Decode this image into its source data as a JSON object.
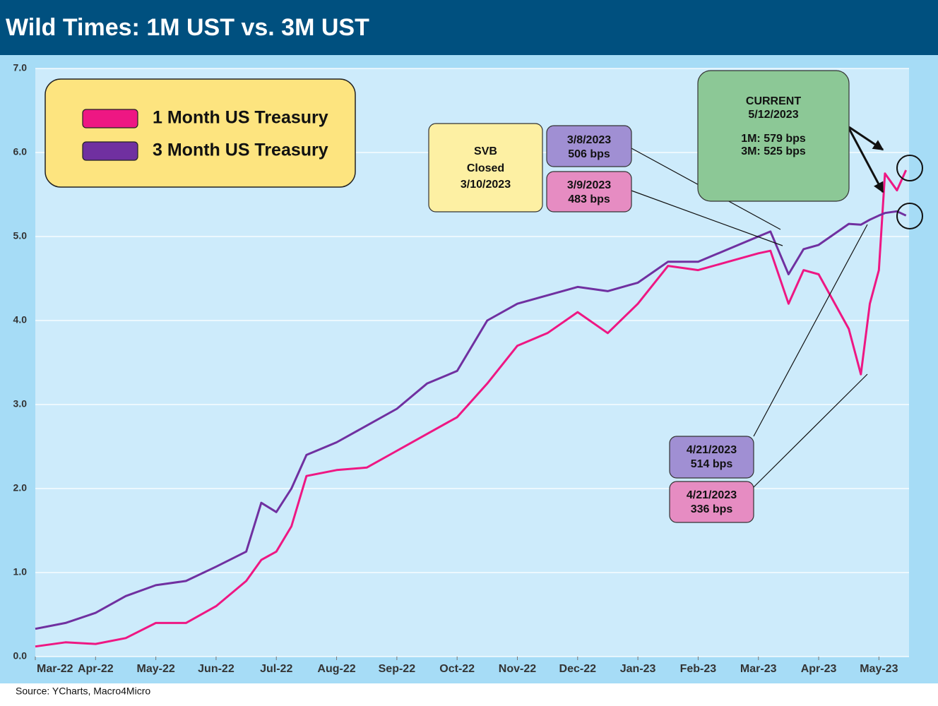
{
  "chart_data": {
    "type": "line",
    "title": "Wild Times: 1M UST vs. 3M UST",
    "source": "Source: YCharts, Macro4Micro",
    "x": [
      0,
      0.5,
      1,
      1.5,
      2,
      2.5,
      3,
      3.5,
      3.75,
      4,
      4.25,
      4.5,
      5,
      5.5,
      6,
      6.5,
      7,
      7.5,
      8,
      8.5,
      9,
      9.5,
      10,
      10.5,
      11,
      11.5,
      12,
      12.2,
      12.5,
      12.75,
      13,
      13.5,
      13.7,
      13.85,
      14,
      14.1,
      14.3,
      14.45
    ],
    "xlim": [
      0,
      14.5
    ],
    "xticks": [
      {
        "value": 0,
        "label": "Mar-22"
      },
      {
        "value": 1,
        "label": "Apr-22"
      },
      {
        "value": 2,
        "label": "May-22"
      },
      {
        "value": 3,
        "label": "Jun-22"
      },
      {
        "value": 4,
        "label": "Jul-22"
      },
      {
        "value": 5,
        "label": "Aug-22"
      },
      {
        "value": 6,
        "label": "Sep-22"
      },
      {
        "value": 7,
        "label": "Oct-22"
      },
      {
        "value": 8,
        "label": "Nov-22"
      },
      {
        "value": 9,
        "label": "Dec-22"
      },
      {
        "value": 10,
        "label": "Jan-23"
      },
      {
        "value": 11,
        "label": "Feb-23"
      },
      {
        "value": 12,
        "label": "Mar-23"
      },
      {
        "value": 13,
        "label": "Apr-23"
      },
      {
        "value": 14,
        "label": "May-23"
      }
    ],
    "ylim": [
      0,
      7
    ],
    "yticks": [
      {
        "value": 0,
        "label": "0.0"
      },
      {
        "value": 1,
        "label": "1.0"
      },
      {
        "value": 2,
        "label": "2.0"
      },
      {
        "value": 3,
        "label": "3.0"
      },
      {
        "value": 4,
        "label": "4.0"
      },
      {
        "value": 5,
        "label": "5.0"
      },
      {
        "value": 6,
        "label": "6.0"
      },
      {
        "value": 7,
        "label": "7.0"
      }
    ],
    "grid": true,
    "legend": "upper left",
    "series": [
      {
        "name": "1 Month US Treasury",
        "color": "#ee1783",
        "values": [
          0.12,
          0.17,
          0.15,
          0.22,
          0.4,
          0.4,
          0.6,
          0.9,
          1.15,
          1.25,
          1.55,
          2.15,
          2.22,
          2.25,
          2.45,
          2.65,
          2.85,
          3.25,
          3.7,
          3.85,
          4.1,
          3.85,
          4.2,
          4.65,
          4.6,
          4.7,
          4.8,
          4.83,
          4.2,
          4.6,
          4.55,
          3.9,
          3.36,
          4.2,
          4.6,
          5.75,
          5.55,
          5.79
        ]
      },
      {
        "name": "3 Month US Treasury",
        "color": "#7030a0",
        "values": [
          0.33,
          0.4,
          0.52,
          0.72,
          0.85,
          0.9,
          1.07,
          1.25,
          1.83,
          1.72,
          2.0,
          2.4,
          2.55,
          2.75,
          2.95,
          3.25,
          3.4,
          4.0,
          4.2,
          4.3,
          4.4,
          4.35,
          4.45,
          4.7,
          4.7,
          4.85,
          5.0,
          5.06,
          4.55,
          4.85,
          4.9,
          5.15,
          5.14,
          5.2,
          5.25,
          5.28,
          5.3,
          5.25
        ]
      }
    ],
    "annotations": [
      {
        "lines": [
          "SVB",
          "Closed",
          "3/10/2023"
        ],
        "color": "#fdf0a3"
      },
      {
        "lines": [
          "3/8/2023",
          "506 bps"
        ],
        "color": "#a08fd3"
      },
      {
        "lines": [
          "3/9/2023",
          "483 bps"
        ],
        "color": "#e68cc2"
      },
      {
        "lines": [
          "CURRENT",
          "5/12/2023",
          "1M: 579 bps",
          "3M: 525 bps"
        ],
        "color": "#8cc896"
      },
      {
        "lines": [
          "4/21/2023",
          "514 bps"
        ],
        "color": "#a08fd3"
      },
      {
        "lines": [
          "4/21/2023",
          "336 bps"
        ],
        "color": "#e68cc2"
      }
    ]
  }
}
